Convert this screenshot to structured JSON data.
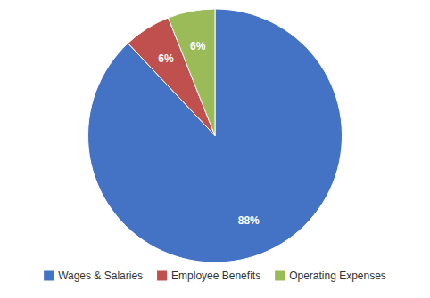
{
  "chart_data": {
    "type": "pie",
    "categories": [
      "Wages & Salaries",
      "Employee Benefits",
      "Operating Expenses"
    ],
    "values": [
      88,
      6,
      6
    ],
    "colors": [
      "#4472C4",
      "#C0504D",
      "#9BBB59"
    ],
    "data_labels": true,
    "value_labels": [
      "88%",
      "6%",
      "6%"
    ],
    "legend": "bottom"
  }
}
